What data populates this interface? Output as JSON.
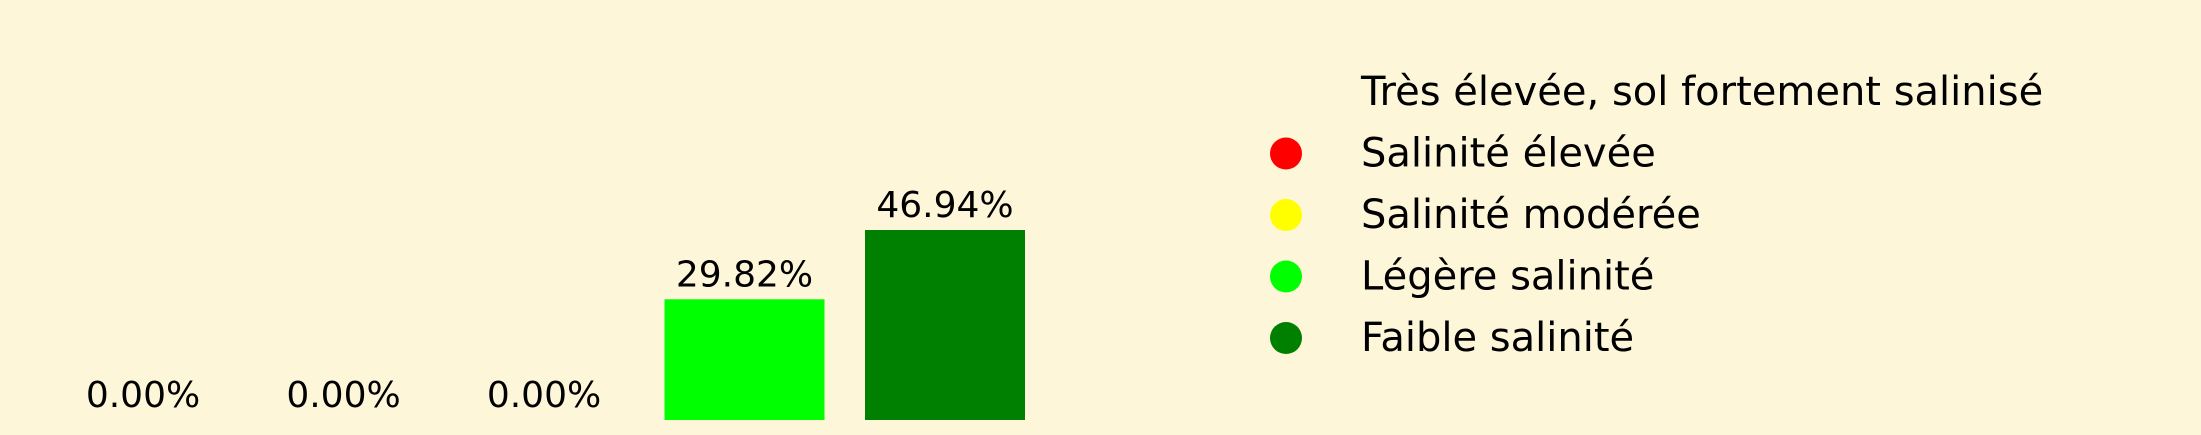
{
  "background": "#fdf6d9",
  "chart_data": {
    "type": "bar",
    "title": "",
    "xlabel": "",
    "ylabel": "",
    "ylim": [
      0,
      50
    ],
    "grid": false,
    "legend_position": "right",
    "categories": [
      "Très élevée, sol fortement salinisé",
      "Salinité élevée",
      "Salinité modérée",
      "Légère salinité",
      "Faible salinité"
    ],
    "values": [
      0.0,
      0.0,
      0.0,
      29.82,
      46.94
    ],
    "value_labels": [
      "0.00%",
      "0.00%",
      "0.00%",
      "29.82%",
      "46.94%"
    ],
    "colors": [
      "#8b0000",
      "#ff0000",
      "#ffff00",
      "#00ff00",
      "#008000"
    ],
    "legend": [
      {
        "label": "Très élevée, sol fortement salinisé",
        "color": "#8b0000",
        "marker": false
      },
      {
        "label": "Salinité élevée",
        "color": "#ff0000",
        "marker": true
      },
      {
        "label": "Salinité modérée",
        "color": "#ffff00",
        "marker": true
      },
      {
        "label": "Légère salinité",
        "color": "#00ff00",
        "marker": true
      },
      {
        "label": "Faible salinité",
        "color": "#008000",
        "marker": true
      }
    ]
  }
}
